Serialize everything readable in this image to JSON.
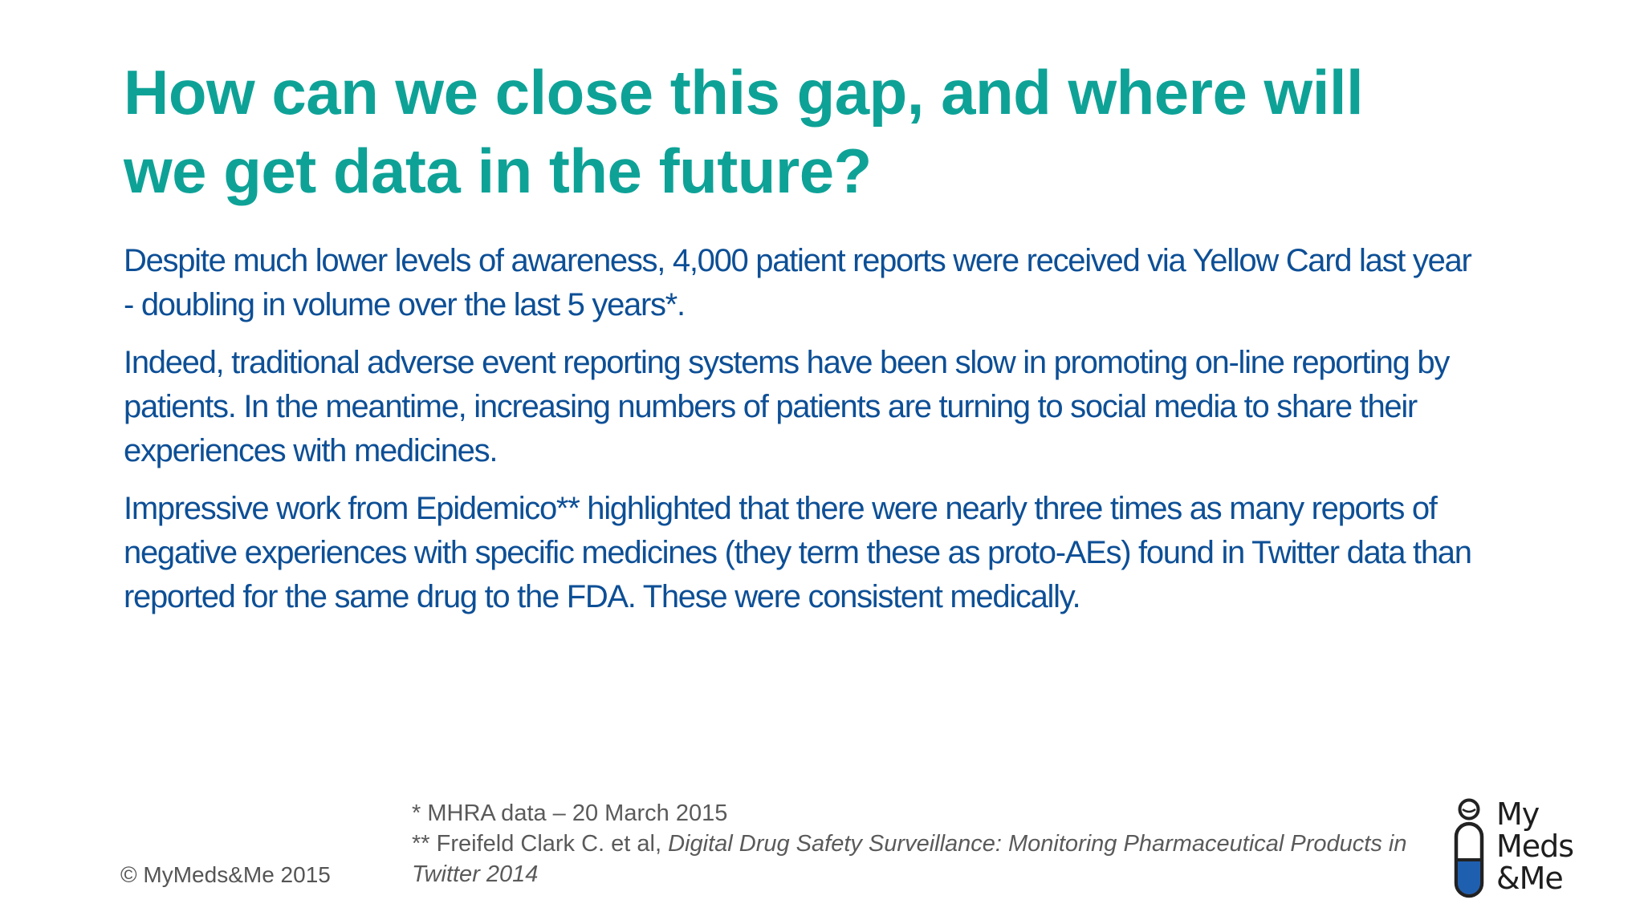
{
  "slide": {
    "title": "How can we close this gap, and where will we get data in the future?",
    "paragraphs": [
      "Despite much lower levels of awareness, 4,000 patient reports were received via Yellow Card last year - doubling in volume over the last 5 years*.",
      "Indeed, traditional adverse event reporting systems have been slow in promoting on-line reporting by patients.  In the meantime, increasing numbers of patients are turning to social media to share their experiences with medicines.",
      "Impressive work from Epidemico** highlighted that there were nearly three times as many reports of negative experiences with specific medicines (they term these as proto-AEs) found in Twitter data than reported for the same drug to the FDA.  These were consistent medically."
    ]
  },
  "footer": {
    "copyright": "© MyMeds&Me 2015",
    "footnote_1": "* MHRA data – 20 March 2015",
    "footnote_2_prefix": "** Freifeld Clark C. et al, ",
    "footnote_2_title": "Digital Drug Safety Surveillance: Monitoring Pharmaceutical Products in Twitter 2014"
  },
  "logo": {
    "line1": "My",
    "line2": "Meds",
    "line3": "&Me",
    "icon": "pill-person-icon",
    "colors": {
      "outline": "#222222",
      "fill": "#1f5fb0"
    }
  },
  "colors": {
    "title": "#0ea297",
    "body": "#0d4f96",
    "footer": "#5a5a5a"
  }
}
